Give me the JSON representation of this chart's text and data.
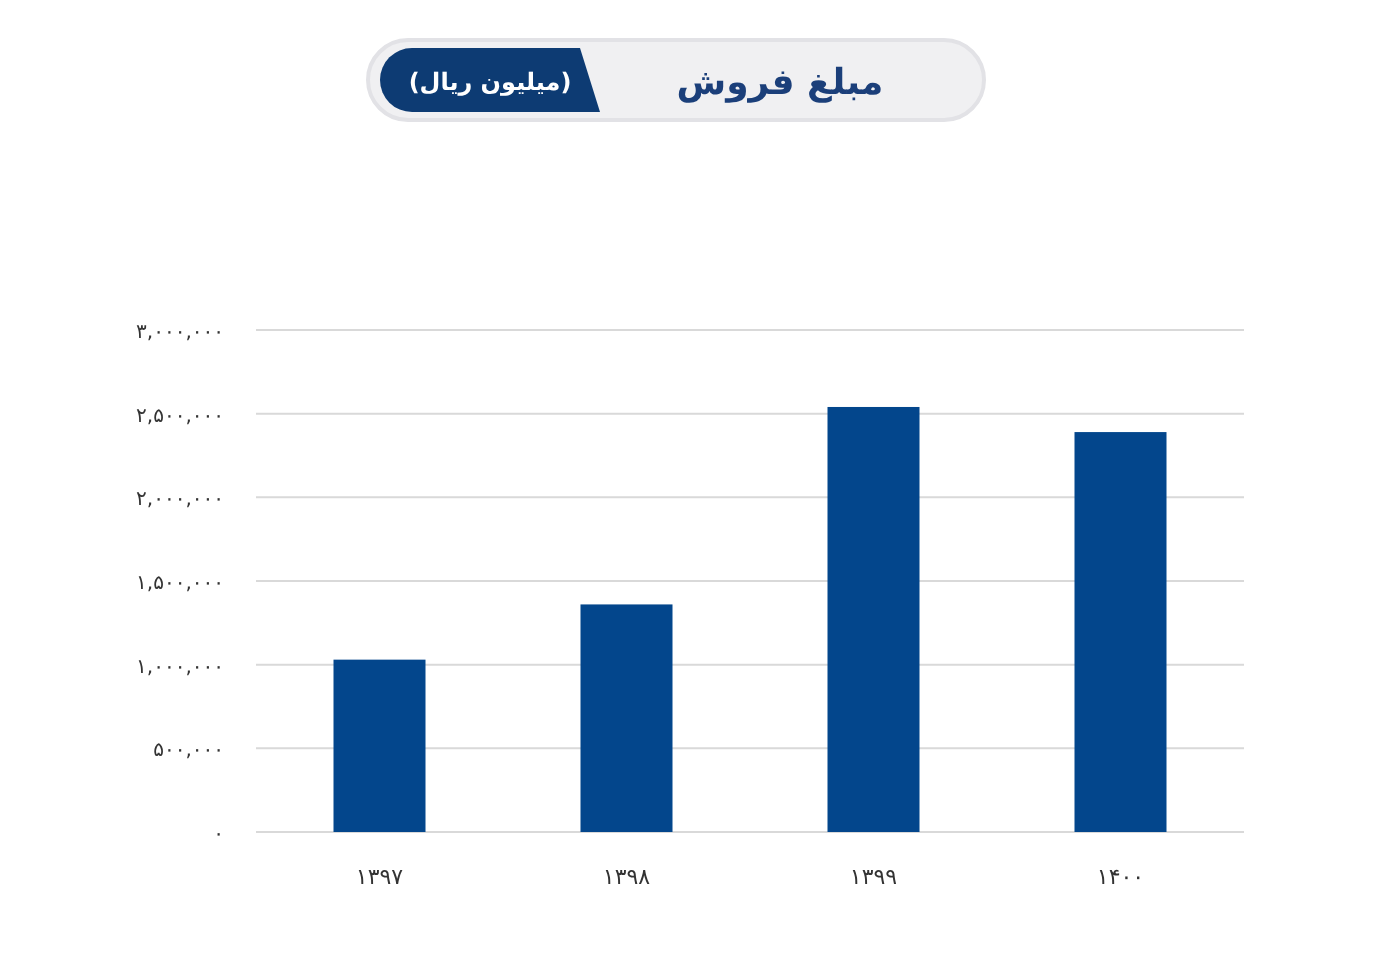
{
  "chart_data": {
    "type": "bar",
    "title": "مبلغ فروش",
    "subtitle": "(میلیون ریال)",
    "categories": [
      "۱۳۹۷",
      "۱۳۹۸",
      "۱۳۹۹",
      "۱۴۰۰"
    ],
    "values": [
      1030000,
      1360000,
      2540000,
      2390000
    ],
    "color": "#03468c",
    "ylim": [
      0,
      3000000
    ],
    "yticks": [
      {
        "value": 0,
        "label": "۰"
      },
      {
        "value": 500000,
        "label": "۵۰۰,۰۰۰"
      },
      {
        "value": 1000000,
        "label": "۱,۰۰۰,۰۰۰"
      },
      {
        "value": 1500000,
        "label": "۱,۵۰۰,۰۰۰"
      },
      {
        "value": 2000000,
        "label": "۲,۰۰۰,۰۰۰"
      },
      {
        "value": 2500000,
        "label": "۲,۵۰۰,۰۰۰"
      },
      {
        "value": 3000000,
        "label": "۳,۰۰۰,۰۰۰"
      }
    ],
    "grid": "y"
  }
}
